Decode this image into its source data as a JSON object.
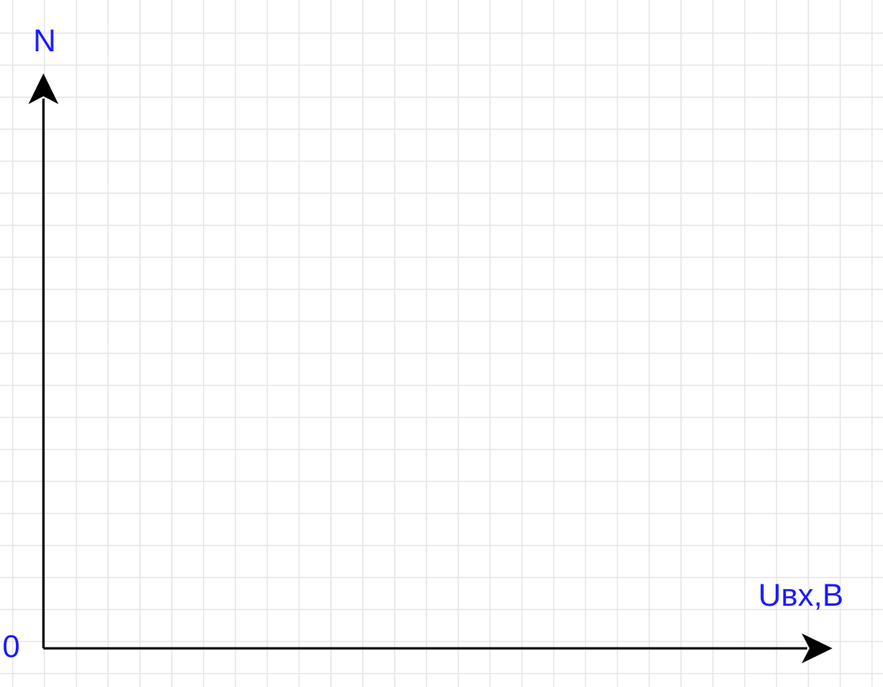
{
  "diagram": {
    "y_axis_label": "N",
    "x_axis_label": "Uвх,В",
    "origin_label": "0",
    "colors": {
      "label": "#1a1aff",
      "axis": "#000000",
      "grid": "#e6e6e6",
      "background": "#ffffff"
    }
  }
}
